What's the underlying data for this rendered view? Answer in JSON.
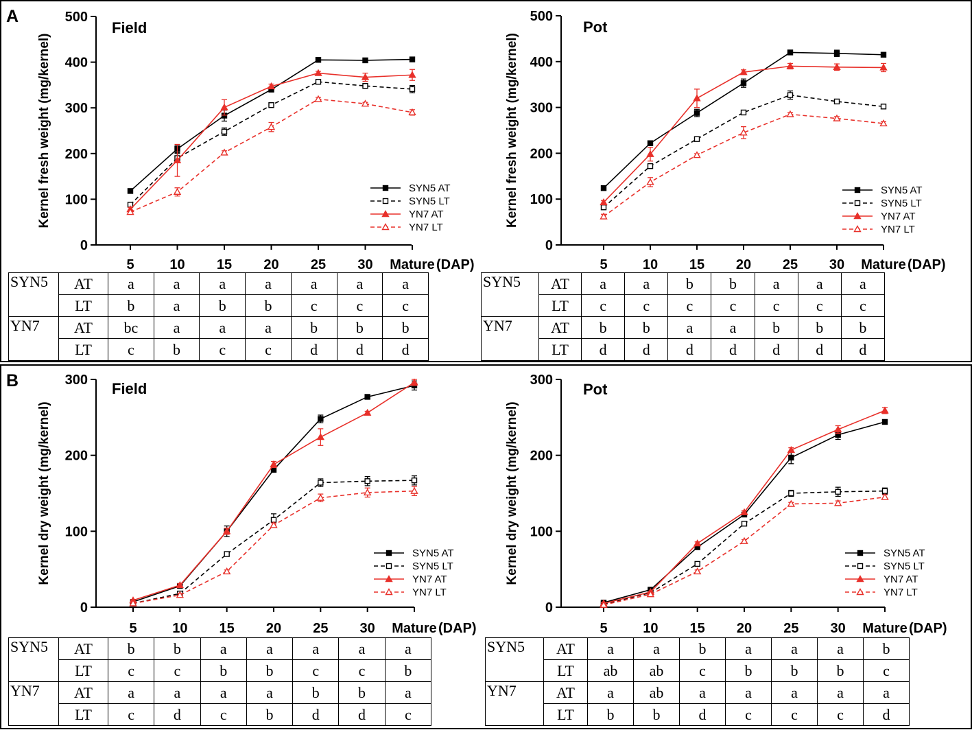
{
  "panel_labels": {
    "a": "A",
    "b": "B"
  },
  "colors": {
    "black": "#000000",
    "red": "#e8302a"
  },
  "legend": [
    "SYN5 AT",
    "SYN5 LT",
    "YN7 AT",
    "YN7 LT"
  ],
  "chart_data": [
    {
      "type": "line",
      "title": "Field",
      "ylabel": "Kernel fresh weight (mg/kernel)",
      "xunit": "(DAP)",
      "categories": [
        "5",
        "10",
        "15",
        "20",
        "25",
        "30",
        "Mature"
      ],
      "ylim": [
        0,
        500
      ],
      "yticks": [
        0,
        100,
        200,
        300,
        400,
        500
      ],
      "series": [
        {
          "name": "SYN5 AT",
          "values": [
            118,
            210,
            283,
            340,
            405,
            404,
            406
          ],
          "err": [
            5,
            8,
            12,
            5,
            4,
            3,
            3
          ]
        },
        {
          "name": "SYN5 LT",
          "values": [
            88,
            190,
            248,
            306,
            357,
            348,
            341
          ],
          "err": [
            4,
            10,
            8,
            4,
            4,
            5,
            8
          ]
        },
        {
          "name": "YN7 AT",
          "values": [
            78,
            185,
            301,
            347,
            376,
            367,
            372
          ],
          "err": [
            4,
            35,
            17,
            5,
            4,
            9,
            12
          ]
        },
        {
          "name": "YN7 LT",
          "values": [
            72,
            116,
            202,
            258,
            319,
            309,
            290
          ],
          "err": [
            4,
            9,
            4,
            10,
            4,
            3,
            6
          ]
        }
      ],
      "sig_table": [
        {
          "group": "SYN5",
          "temp": "AT",
          "letters": [
            "a",
            "a",
            "a",
            "a",
            "a",
            "a",
            "a"
          ]
        },
        {
          "group": "",
          "temp": "LT",
          "letters": [
            "b",
            "a",
            "b",
            "b",
            "c",
            "c",
            "c"
          ]
        },
        {
          "group": "YN7",
          "temp": "AT",
          "letters": [
            "bc",
            "a",
            "a",
            "a",
            "b",
            "b",
            "b"
          ]
        },
        {
          "group": "",
          "temp": "LT",
          "letters": [
            "c",
            "b",
            "c",
            "c",
            "d",
            "d",
            "d"
          ]
        }
      ]
    },
    {
      "type": "line",
      "title": "Pot",
      "ylabel": "Kernel fresh weight (mg/kernel)",
      "xunit": "(DAP)",
      "categories": [
        "5",
        "10",
        "15",
        "20",
        "25",
        "30",
        "Mature"
      ],
      "ylim": [
        0,
        500
      ],
      "yticks": [
        0,
        100,
        200,
        300,
        400,
        500
      ],
      "series": [
        {
          "name": "SYN5 AT",
          "values": [
            124,
            222,
            288,
            353,
            420,
            418,
            415
          ],
          "err": [
            3,
            5,
            8,
            9,
            3,
            7,
            4
          ]
        },
        {
          "name": "SYN5 LT",
          "values": [
            82,
            172,
            231,
            289,
            327,
            313,
            302
          ],
          "err": [
            4,
            5,
            4,
            4,
            9,
            4,
            4
          ]
        },
        {
          "name": "YN7 AT",
          "values": [
            93,
            198,
            320,
            377,
            390,
            388,
            387
          ],
          "err": [
            4,
            15,
            20,
            5,
            6,
            7,
            9
          ]
        },
        {
          "name": "YN7 LT",
          "values": [
            62,
            137,
            196,
            245,
            285,
            276,
            265
          ],
          "err": [
            5,
            10,
            3,
            13,
            4,
            4,
            4
          ]
        }
      ],
      "sig_table": [
        {
          "group": "SYN5",
          "temp": "AT",
          "letters": [
            "a",
            "a",
            "b",
            "b",
            "a",
            "a",
            "a"
          ]
        },
        {
          "group": "",
          "temp": "LT",
          "letters": [
            "c",
            "c",
            "c",
            "c",
            "c",
            "c",
            "c"
          ]
        },
        {
          "group": "YN7",
          "temp": "AT",
          "letters": [
            "b",
            "b",
            "a",
            "a",
            "b",
            "b",
            "b"
          ]
        },
        {
          "group": "",
          "temp": "LT",
          "letters": [
            "d",
            "d",
            "d",
            "d",
            "d",
            "d",
            "d"
          ]
        }
      ]
    },
    {
      "type": "line",
      "title": "Field",
      "ylabel": "Kernel dry weight (mg/kernel)",
      "xunit": "(DAP)",
      "categories": [
        "5",
        "10",
        "15",
        "20",
        "25",
        "30",
        "Mature"
      ],
      "ylim": [
        0,
        300
      ],
      "yticks": [
        0,
        100,
        200,
        300
      ],
      "series": [
        {
          "name": "SYN5 AT",
          "values": [
            7,
            28,
            100,
            181,
            248,
            277,
            292
          ],
          "err": [
            1,
            2,
            7,
            3,
            5,
            2,
            6
          ]
        },
        {
          "name": "SYN5 LT",
          "values": [
            5,
            18,
            70,
            115,
            164,
            166,
            167
          ],
          "err": [
            1,
            2,
            3,
            8,
            5,
            6,
            6
          ]
        },
        {
          "name": "YN7 AT",
          "values": [
            9,
            29,
            100,
            188,
            224,
            256,
            296
          ],
          "err": [
            1,
            2,
            4,
            4,
            11,
            2,
            4
          ]
        },
        {
          "name": "YN7 LT",
          "values": [
            5,
            16,
            47,
            108,
            144,
            151,
            153
          ],
          "err": [
            1,
            2,
            2,
            3,
            5,
            6,
            6
          ]
        }
      ],
      "sig_table": [
        {
          "group": "SYN5",
          "temp": "AT",
          "letters": [
            "b",
            "b",
            "a",
            "a",
            "a",
            "a",
            "a"
          ]
        },
        {
          "group": "",
          "temp": "LT",
          "letters": [
            "c",
            "c",
            "b",
            "b",
            "c",
            "c",
            "b"
          ]
        },
        {
          "group": "YN7",
          "temp": "AT",
          "letters": [
            "a",
            "a",
            "a",
            "a",
            "b",
            "b",
            "a"
          ]
        },
        {
          "group": "",
          "temp": "LT",
          "letters": [
            "c",
            "d",
            "c",
            "b",
            "d",
            "d",
            "c"
          ]
        }
      ]
    },
    {
      "type": "line",
      "title": "Pot",
      "ylabel": "Kernel dry weight (mg/kernel)",
      "xunit": "(DAP)",
      "categories": [
        "5",
        "10",
        "15",
        "20",
        "25",
        "30",
        "Mature"
      ],
      "ylim": [
        0,
        300
      ],
      "yticks": [
        0,
        100,
        200,
        300
      ],
      "series": [
        {
          "name": "SYN5 AT",
          "values": [
            6,
            23,
            79,
            122,
            197,
            227,
            244
          ],
          "err": [
            1,
            2,
            3,
            3,
            8,
            6,
            2
          ]
        },
        {
          "name": "SYN5 LT",
          "values": [
            4,
            19,
            57,
            110,
            150,
            152,
            153
          ],
          "err": [
            1,
            1,
            2,
            2,
            4,
            6,
            4
          ]
        },
        {
          "name": "YN7 AT",
          "values": [
            5,
            20,
            84,
            125,
            207,
            234,
            259
          ],
          "err": [
            1,
            1,
            2,
            2,
            3,
            5,
            4
          ]
        },
        {
          "name": "YN7 LT",
          "values": [
            3,
            17,
            47,
            87,
            136,
            137,
            145
          ],
          "err": [
            1,
            1,
            2,
            2,
            2,
            3,
            3
          ]
        }
      ],
      "sig_table": [
        {
          "group": "SYN5",
          "temp": "AT",
          "letters": [
            "a",
            "a",
            "b",
            "a",
            "a",
            "a",
            "b"
          ]
        },
        {
          "group": "",
          "temp": "LT",
          "letters": [
            "ab",
            "ab",
            "c",
            "b",
            "b",
            "b",
            "c"
          ]
        },
        {
          "group": "YN7",
          "temp": "AT",
          "letters": [
            "a",
            "ab",
            "a",
            "a",
            "a",
            "a",
            "a"
          ]
        },
        {
          "group": "",
          "temp": "LT",
          "letters": [
            "b",
            "b",
            "d",
            "c",
            "c",
            "c",
            "d"
          ]
        }
      ]
    }
  ]
}
